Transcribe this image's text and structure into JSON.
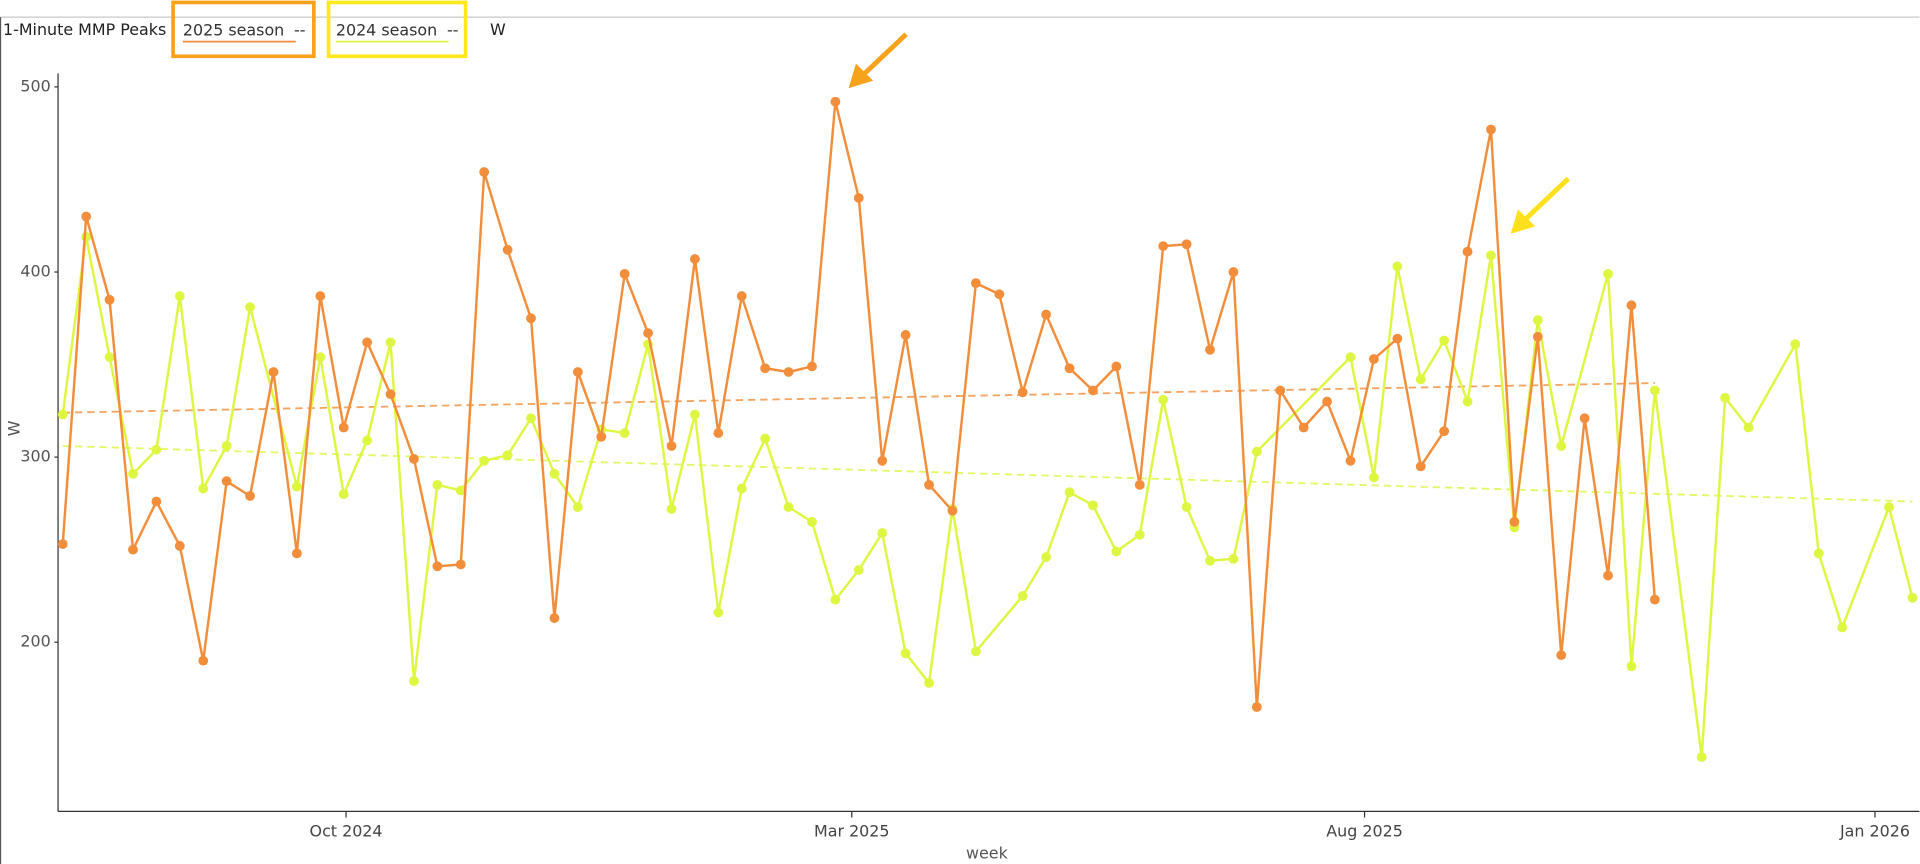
{
  "chart_data": {
    "type": "line",
    "title": "1-Minute MMP Peaks",
    "unit_label": "W",
    "trend_legend": "--",
    "x_label": "week",
    "y_label": "W",
    "xlim": [
      -0.2,
      79.3
    ],
    "xticks": [
      {
        "value": 12.1,
        "label": "Oct 2024"
      },
      {
        "value": 33.7,
        "label": "Mar 2025"
      },
      {
        "value": 55.6,
        "label": "Aug 2025"
      },
      {
        "value": 77.4,
        "label": "Jan 2026"
      }
    ],
    "ylim": [
      108.6,
      537.7
    ],
    "yticks": [
      200,
      300,
      400,
      500
    ],
    "series": [
      {
        "name": "2025 season",
        "color": "#f28e3b",
        "box_color": "#f7a21b",
        "x": [
          0,
          1,
          2,
          3,
          4,
          5,
          6,
          7,
          8,
          9,
          10,
          11,
          12,
          13,
          14,
          15,
          16,
          17,
          18,
          19,
          20,
          21,
          22,
          23,
          24,
          25,
          26,
          27,
          28,
          29,
          30,
          31,
          32,
          33,
          34,
          35,
          36,
          37,
          38,
          39,
          40,
          41,
          42,
          43,
          44,
          45,
          46,
          47,
          48,
          49,
          50,
          51,
          52,
          53,
          54,
          55,
          56,
          57,
          58,
          59,
          60,
          61,
          62,
          63,
          64,
          65,
          66,
          67,
          68
        ],
        "values": [
          253,
          430,
          385,
          250,
          276,
          252,
          190,
          287,
          279,
          346,
          248,
          387,
          316,
          362,
          334,
          299,
          241,
          242,
          454,
          412,
          375,
          213,
          346,
          311,
          399,
          367,
          306,
          407,
          313,
          387,
          348,
          346,
          349,
          492,
          440,
          298,
          366,
          285,
          271,
          394,
          388,
          335,
          377,
          348,
          336,
          349,
          285,
          414,
          415,
          358,
          400,
          165,
          336,
          316,
          330,
          298,
          353,
          364,
          295,
          314,
          411,
          477,
          265,
          365,
          193,
          321,
          236,
          382,
          223
        ],
        "trend": [
          324,
          340
        ]
      },
      {
        "name": "2024 season",
        "color": "#def542",
        "box_color": "#ffe81c",
        "x": [
          0,
          1,
          2,
          3,
          4,
          5,
          6,
          7,
          8,
          10,
          11,
          12,
          13,
          14,
          15,
          16,
          17,
          18,
          19,
          20,
          21,
          22,
          23,
          24,
          25,
          26,
          27,
          28,
          29,
          30,
          31,
          32,
          33,
          34,
          35,
          36,
          37,
          38,
          39,
          41,
          42,
          43,
          44,
          45,
          46,
          47,
          48,
          49,
          50,
          51,
          55,
          56,
          57,
          58,
          59,
          60,
          61,
          62,
          63,
          64,
          66,
          67,
          68,
          70,
          71,
          72,
          74,
          75,
          76,
          78,
          79
        ],
        "values": [
          323,
          419,
          354,
          291,
          304,
          387,
          283,
          306,
          381,
          284,
          354,
          280,
          309,
          362,
          179,
          285,
          282,
          298,
          301,
          321,
          291,
          273,
          315,
          313,
          361,
          272,
          323,
          216,
          283,
          310,
          273,
          265,
          223,
          239,
          259,
          194,
          178,
          272,
          195,
          225,
          246,
          281,
          274,
          249,
          258,
          331,
          273,
          244,
          245,
          303,
          354,
          289,
          403,
          342,
          363,
          330,
          409,
          262,
          374,
          306,
          399,
          187,
          336,
          138,
          332,
          316,
          361,
          248,
          208,
          273,
          224
        ],
        "trend": [
          306,
          276
        ]
      }
    ]
  }
}
